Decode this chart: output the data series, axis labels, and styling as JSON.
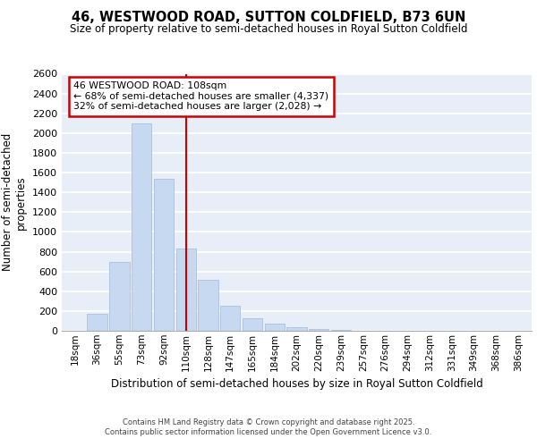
{
  "title": "46, WESTWOOD ROAD, SUTTON COLDFIELD, B73 6UN",
  "subtitle": "Size of property relative to semi-detached houses in Royal Sutton Coldfield",
  "xlabel": "Distribution of semi-detached houses by size in Royal Sutton Coldfield",
  "ylabel": "Number of semi-detached\nproperties",
  "categories": [
    "18sqm",
    "36sqm",
    "55sqm",
    "73sqm",
    "92sqm",
    "110sqm",
    "128sqm",
    "147sqm",
    "165sqm",
    "184sqm",
    "202sqm",
    "220sqm",
    "239sqm",
    "257sqm",
    "276sqm",
    "294sqm",
    "312sqm",
    "331sqm",
    "349sqm",
    "368sqm",
    "386sqm"
  ],
  "values": [
    0,
    170,
    700,
    2100,
    1540,
    830,
    520,
    250,
    130,
    70,
    40,
    20,
    5,
    2,
    0,
    0,
    0,
    0,
    0,
    0,
    0
  ],
  "bar_color": "#c6d9f0",
  "bar_edge_color": "#a0b8d8",
  "highlight_index": 5,
  "highlight_line_color": "#cc0000",
  "background_color": "#e8eef8",
  "grid_color": "#ffffff",
  "annotation_text": "46 WESTWOOD ROAD: 108sqm\n← 68% of semi-detached houses are smaller (4,337)\n32% of semi-detached houses are larger (2,028) →",
  "annotation_box_color": "#ffffff",
  "annotation_box_edge_color": "#cc0000",
  "footer_text": "Contains HM Land Registry data © Crown copyright and database right 2025.\nContains public sector information licensed under the Open Government Licence v3.0.",
  "ylim": [
    0,
    2600
  ],
  "yticks": [
    0,
    200,
    400,
    600,
    800,
    1000,
    1200,
    1400,
    1600,
    1800,
    2000,
    2200,
    2400,
    2600
  ]
}
